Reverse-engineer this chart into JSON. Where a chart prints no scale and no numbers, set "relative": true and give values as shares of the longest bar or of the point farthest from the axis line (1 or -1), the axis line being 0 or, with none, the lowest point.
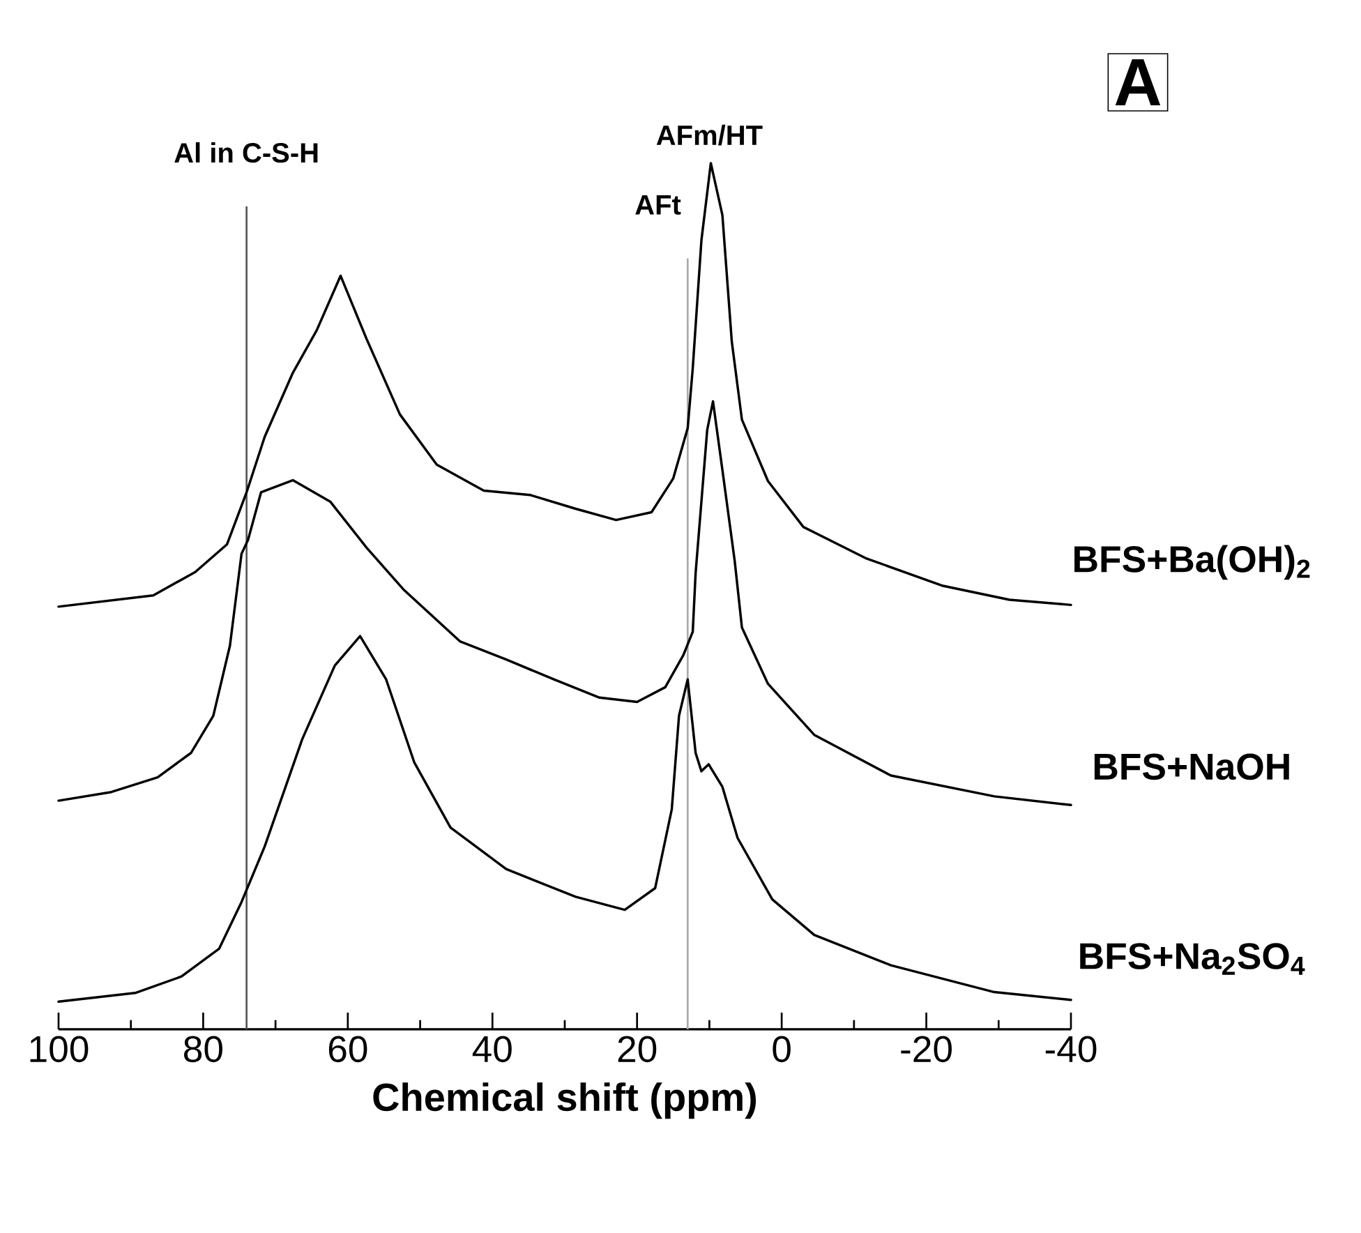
{
  "chart_data": {
    "type": "line",
    "relative": true,
    "xlabel": "Chemical shift (ppm)",
    "xlim": [
      100,
      -40
    ],
    "xticks": [
      100,
      80,
      60,
      40,
      20,
      0,
      -20,
      -40
    ],
    "annotations": [
      {
        "text": "AFm/HT",
        "x": 10,
        "y": 1.0
      },
      "A"
    ],
    "ref_lines": [
      {
        "axis": "x",
        "value": 74,
        "label": "Al in C-S-H",
        "color": "#555555"
      },
      {
        "axis": "x",
        "value": 13,
        "label": "AFt",
        "color": "#aaaaaa"
      }
    ],
    "series": [
      {
        "name": "BFS+Ba(OH)$_{2}$",
        "color": "#000000",
        "x": [
          100,
          86.9,
          81.1,
          76.7,
          74.0,
          71.5,
          67.6,
          64.3,
          61.0,
          57.4,
          52.8,
          47.7,
          41.2,
          34.8,
          28.5,
          22.9,
          18.0,
          15.0,
          13.0,
          12.3,
          11.1,
          9.8,
          8.2,
          6.9,
          5.5,
          1.9,
          -3.0,
          -11.6,
          -22.3,
          -31.5,
          -40
        ],
        "values": [
          0.488,
          0.501,
          0.528,
          0.56,
          0.62,
          0.684,
          0.758,
          0.807,
          0.87,
          0.797,
          0.71,
          0.652,
          0.622,
          0.617,
          0.601,
          0.588,
          0.597,
          0.636,
          0.694,
          0.763,
          0.911,
          1.0,
          0.94,
          0.794,
          0.704,
          0.633,
          0.58,
          0.544,
          0.512,
          0.496,
          0.49
        ]
      },
      {
        "name": "BFS+NaOH",
        "color": "#000000",
        "x": [
          100,
          92.7,
          86.3,
          81.7,
          78.6,
          76.3,
          74.7,
          73.8,
          72.0,
          67.6,
          62.4,
          57.4,
          52.2,
          44.5,
          38.1,
          31.5,
          25.2,
          20.0,
          16.1,
          13.6,
          12.3,
          11.9,
          10.3,
          9.5,
          8.2,
          6.5,
          5.5,
          1.9,
          -4.5,
          -15.1,
          -29.4,
          -40
        ],
        "values": [
          0.264,
          0.274,
          0.291,
          0.319,
          0.362,
          0.443,
          0.549,
          0.565,
          0.62,
          0.634,
          0.609,
          0.556,
          0.507,
          0.448,
          0.427,
          0.404,
          0.383,
          0.378,
          0.395,
          0.432,
          0.459,
          0.527,
          0.692,
          0.725,
          0.646,
          0.541,
          0.464,
          0.399,
          0.34,
          0.293,
          0.269,
          0.259
        ]
      },
      {
        "name": "BFS+Na$_{2}$SO$_{4}$",
        "color": "#000000",
        "x": [
          100,
          89.4,
          83.0,
          77.8,
          74.7,
          71.5,
          66.3,
          61.8,
          58.3,
          54.7,
          50.8,
          45.8,
          38.1,
          28.5,
          21.7,
          17.5,
          15.2,
          14.2,
          13.0,
          11.9,
          11.1,
          10.1,
          8.2,
          6.1,
          1.3,
          -4.5,
          -15.1,
          -29.4,
          -40
        ],
        "values": [
          0.032,
          0.042,
          0.061,
          0.093,
          0.147,
          0.211,
          0.335,
          0.42,
          0.454,
          0.404,
          0.308,
          0.233,
          0.185,
          0.153,
          0.138,
          0.163,
          0.254,
          0.362,
          0.404,
          0.319,
          0.298,
          0.306,
          0.28,
          0.221,
          0.15,
          0.109,
          0.074,
          0.043,
          0.034
        ]
      }
    ]
  }
}
